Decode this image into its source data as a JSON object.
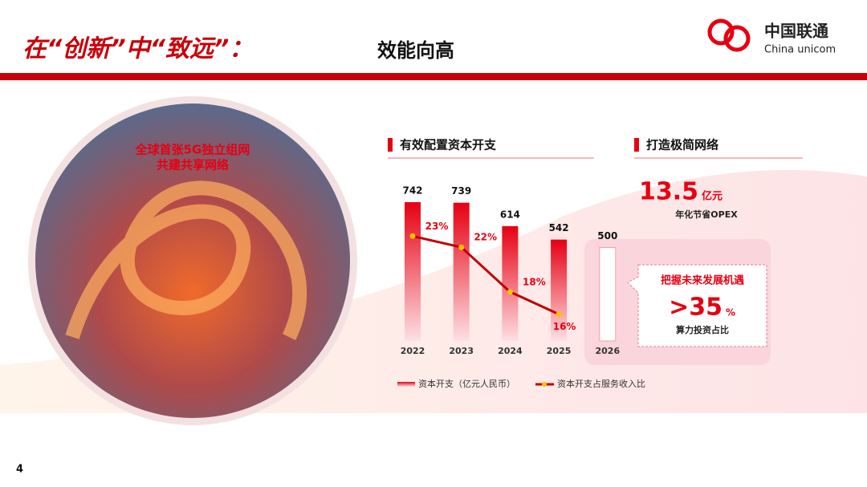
{
  "header": {
    "title_red": "在“创新”中“致远”：",
    "title_black": "效能向高",
    "logo_cn": "中国联通",
    "logo_en": "China unicom"
  },
  "photo": {
    "line1": "全球首张5G独立组网",
    "line2": "共建共享网络"
  },
  "sections": {
    "capex": "有效配置资本开支",
    "network": "打造极简网络"
  },
  "network": {
    "number": "13.5",
    "unit": "亿元",
    "caption": "年化节省OPEX"
  },
  "callout": {
    "title": "把握未来发展机遇",
    "number": ">35",
    "unit": "%",
    "caption": "算力投资占比"
  },
  "page_number": "4",
  "chart_data": {
    "type": "bar",
    "categories": [
      "2022",
      "2023",
      "2024",
      "2025",
      "2026"
    ],
    "series": [
      {
        "name": "资本开支（亿元人民币）",
        "color": "#e60012",
        "values": [
          742,
          739,
          614,
          542,
          500
        ]
      },
      {
        "name": "资本开支占服务收入比",
        "color": "#c00000",
        "type": "line",
        "values": [
          23,
          22,
          18,
          16,
          null
        ],
        "value_labels": [
          "23%",
          "22%",
          "18%",
          "16%",
          null
        ]
      }
    ]
  }
}
